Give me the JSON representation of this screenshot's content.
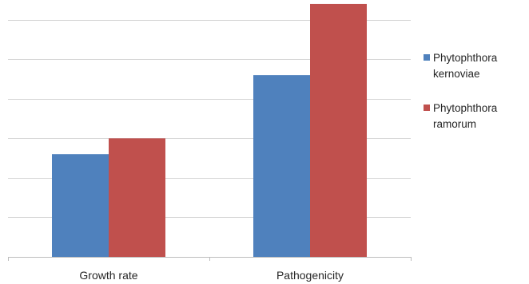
{
  "chart_data": {
    "type": "bar",
    "title": "",
    "xlabel": "",
    "ylabel": "",
    "categories": [
      "Growth rate",
      "Pathogenicity"
    ],
    "series": [
      {
        "name": "Phytophthora kernoviae",
        "name_lines": [
          "Phytophthora",
          "kernoviae"
        ],
        "color": "#4f81bd",
        "values": [
          2.6,
          4.6
        ]
      },
      {
        "name": "Phytophthora ramorum",
        "name_lines": [
          "Phytophthora",
          "ramorum"
        ],
        "color": "#c0504d",
        "values": [
          3.0,
          6.4
        ]
      }
    ],
    "ylim": [
      0,
      6.5
    ],
    "gridlines": [
      1,
      2,
      3,
      4,
      5,
      6
    ],
    "grid": true,
    "axis_tick_labels_shown": false,
    "legend_position": "right"
  }
}
